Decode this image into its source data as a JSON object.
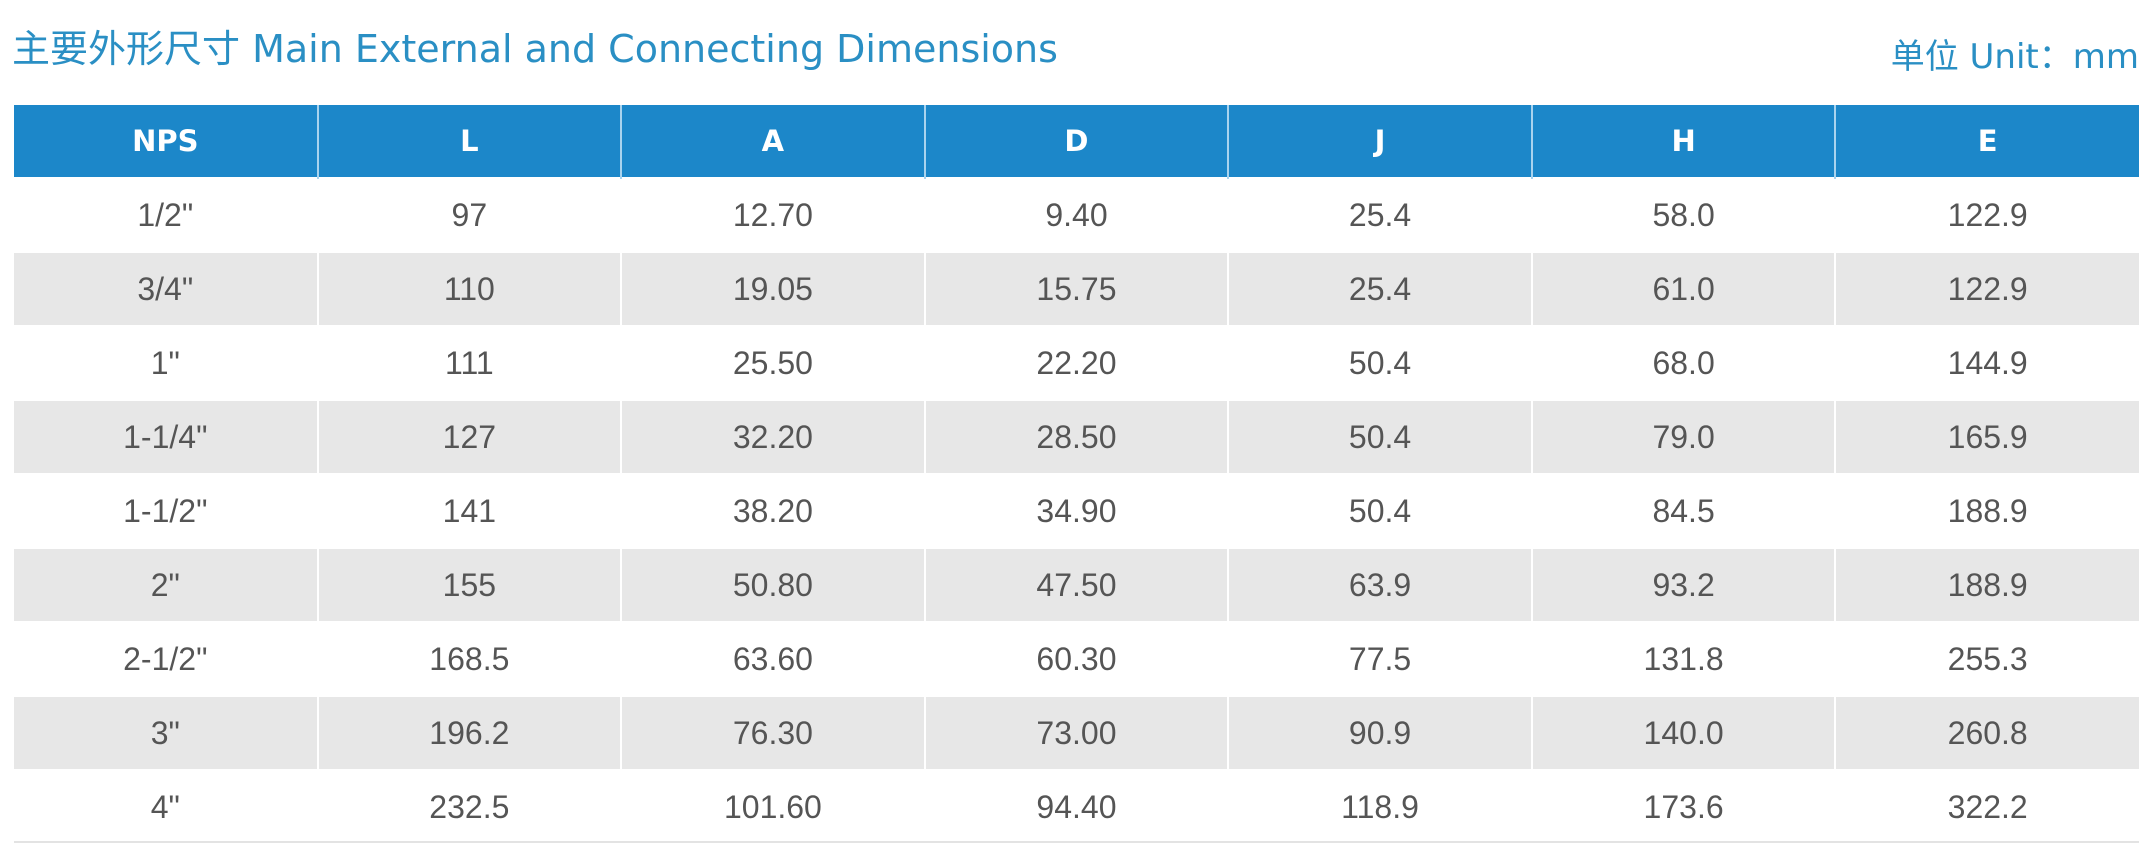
{
  "header": {
    "title": "主要外形尺寸 Main External and Connecting Dimensions",
    "unit": "单位 Unit：mm"
  },
  "colors": {
    "accent": "#2a8fc4",
    "header_bg": "#1c87c9",
    "stripe_bg": "#e7e7e7",
    "body_text": "#555555"
  },
  "table": {
    "columns": [
      "NPS",
      "L",
      "A",
      "D",
      "J",
      "H",
      "E"
    ],
    "rows": [
      [
        "1/2\"",
        "97",
        "12.70",
        "9.40",
        "25.4",
        "58.0",
        "122.9"
      ],
      [
        "3/4\"",
        "110",
        "19.05",
        "15.75",
        "25.4",
        "61.0",
        "122.9"
      ],
      [
        "1\"",
        "111",
        "25.50",
        "22.20",
        "50.4",
        "68.0",
        "144.9"
      ],
      [
        "1-1/4\"",
        "127",
        "32.20",
        "28.50",
        "50.4",
        "79.0",
        "165.9"
      ],
      [
        "1-1/2\"",
        "141",
        "38.20",
        "34.90",
        "50.4",
        "84.5",
        "188.9"
      ],
      [
        "2\"",
        "155",
        "50.80",
        "47.50",
        "63.9",
        "93.2",
        "188.9"
      ],
      [
        "2-1/2\"",
        "168.5",
        "63.60",
        "60.30",
        "77.5",
        "131.8",
        "255.3"
      ],
      [
        "3\"",
        "196.2",
        "76.30",
        "73.00",
        "90.9",
        "140.0",
        "260.8"
      ],
      [
        "4\"",
        "232.5",
        "101.60",
        "94.40",
        "118.9",
        "173.6",
        "322.2"
      ]
    ]
  }
}
